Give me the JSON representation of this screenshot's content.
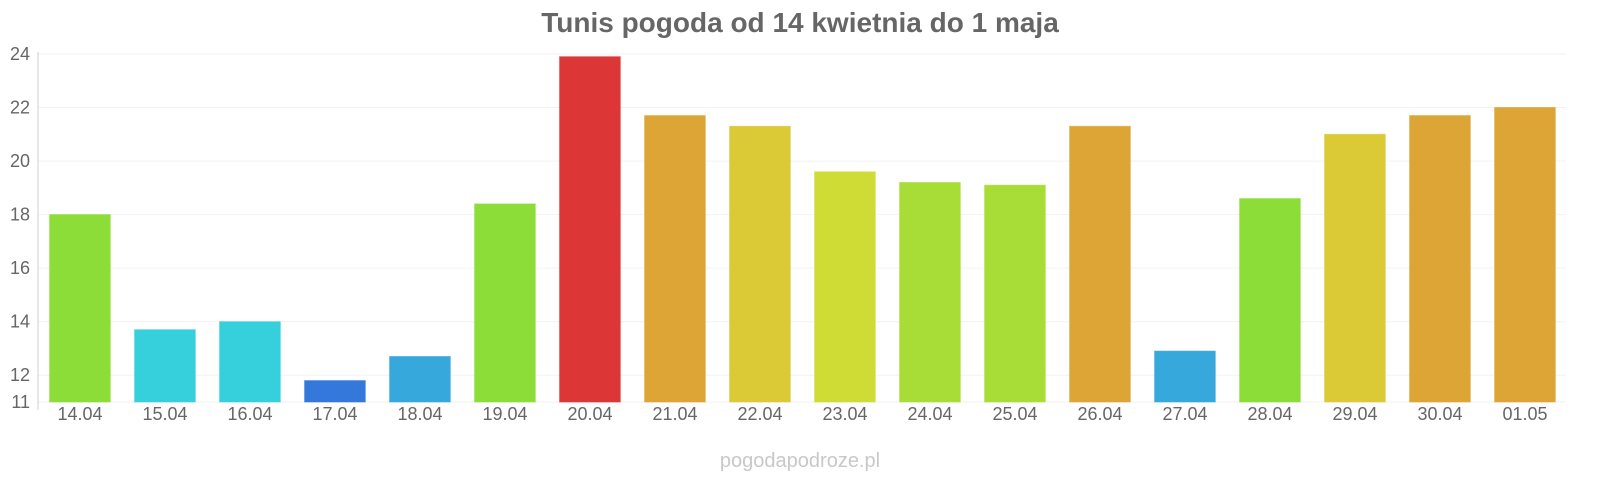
{
  "chart_data": {
    "type": "bar",
    "title": "Tunis pogoda od 14 kwietnia do 1 maja",
    "xlabel": "",
    "ylabel": "",
    "ylim": [
      11,
      24
    ],
    "yticks": [
      11,
      12,
      14,
      16,
      18,
      20,
      22,
      24
    ],
    "grid": true,
    "categories": [
      "14.04",
      "15.04",
      "16.04",
      "17.04",
      "18.04",
      "19.04",
      "20.04",
      "21.04",
      "22.04",
      "23.04",
      "24.04",
      "25.04",
      "26.04",
      "27.04",
      "28.04",
      "29.04",
      "30.04",
      "01.05"
    ],
    "values": [
      18.0,
      13.7,
      14.0,
      11.8,
      12.7,
      18.4,
      23.9,
      21.7,
      21.3,
      19.6,
      19.2,
      19.1,
      21.3,
      12.9,
      18.6,
      21.0,
      21.7,
      22.0
    ],
    "colors": [
      "#8ddd38",
      "#36d0dc",
      "#36d0dc",
      "#3478dc",
      "#36a8dc",
      "#8ddd38",
      "#dc3636",
      "#dca536",
      "#dcc936",
      "#d0dc36",
      "#a8dc36",
      "#a8dc36",
      "#dca536",
      "#36a8dc",
      "#8ddd38",
      "#dcc936",
      "#dca536",
      "#dca536"
    ]
  },
  "footer": {
    "source": "pogodapodroze.pl"
  }
}
